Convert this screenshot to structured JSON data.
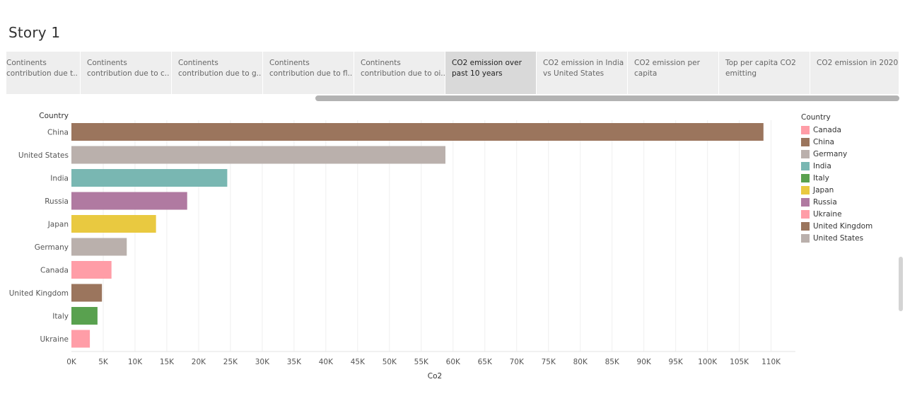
{
  "story": {
    "title": "Story 1"
  },
  "tabs": [
    {
      "line1": "Continents",
      "line2": "contribution due t..",
      "active": false
    },
    {
      "line1": "Continents",
      "line2": "contribution due to c..",
      "active": false
    },
    {
      "line1": "Continents",
      "line2": "contribution due to g..",
      "active": false
    },
    {
      "line1": "Continents",
      "line2": "contribution due to fl..",
      "active": false
    },
    {
      "line1": "Continents",
      "line2": "contribution due to oi..",
      "active": false
    },
    {
      "line1": "CO2 emission over",
      "line2": "past 10 years",
      "active": true
    },
    {
      "line1": "CO2 emission in India",
      "line2": "vs United States",
      "active": false
    },
    {
      "line1": "CO2 emission per",
      "line2": "capita",
      "active": false
    },
    {
      "line1": "Top per capita CO2",
      "line2": "emitting",
      "active": false
    },
    {
      "line1": "CO2 emission in 2020",
      "line2": "",
      "active": false
    }
  ],
  "chart_data": {
    "type": "bar",
    "orientation": "horizontal",
    "ylabel": "Country",
    "xlabel": "Co2",
    "xlim": [
      0,
      115000
    ],
    "x_ticks": [
      0,
      5000,
      10000,
      15000,
      20000,
      25000,
      30000,
      35000,
      40000,
      45000,
      50000,
      55000,
      60000,
      65000,
      70000,
      75000,
      80000,
      85000,
      90000,
      95000,
      100000,
      105000,
      110000
    ],
    "x_tick_labels": [
      "0K",
      "5K",
      "10K",
      "15K",
      "20K",
      "25K",
      "30K",
      "35K",
      "40K",
      "45K",
      "50K",
      "55K",
      "60K",
      "65K",
      "70K",
      "75K",
      "80K",
      "85K",
      "90K",
      "95K",
      "100K",
      "105K",
      "110K"
    ],
    "grid": "vertical",
    "categories": [
      "China",
      "United States",
      "India",
      "Russia",
      "Japan",
      "Germany",
      "Canada",
      "United Kingdom",
      "Italy",
      "Ukraine"
    ],
    "values": [
      108800,
      58800,
      24500,
      18200,
      13300,
      8700,
      6300,
      4800,
      4100,
      2900
    ],
    "bar_colors": [
      "#9b755d",
      "#bab0ac",
      "#79b7b2",
      "#b07aa1",
      "#e9c940",
      "#bab0ac",
      "#ff9da7",
      "#9b755d",
      "#59a14f",
      "#ff9da7"
    ],
    "legend": {
      "title": "Country",
      "position": "right",
      "items": [
        {
          "label": "Canada",
          "color": "#ff9da7"
        },
        {
          "label": "China",
          "color": "#9b755d"
        },
        {
          "label": "Germany",
          "color": "#bab0ac"
        },
        {
          "label": "India",
          "color": "#79b7b2"
        },
        {
          "label": "Italy",
          "color": "#59a14f"
        },
        {
          "label": "Japan",
          "color": "#e9c940"
        },
        {
          "label": "Russia",
          "color": "#b07aa1"
        },
        {
          "label": "Ukraine",
          "color": "#ff9da7"
        },
        {
          "label": "United Kingdom",
          "color": "#9b755d"
        },
        {
          "label": "United States",
          "color": "#bab0ac"
        }
      ]
    }
  }
}
